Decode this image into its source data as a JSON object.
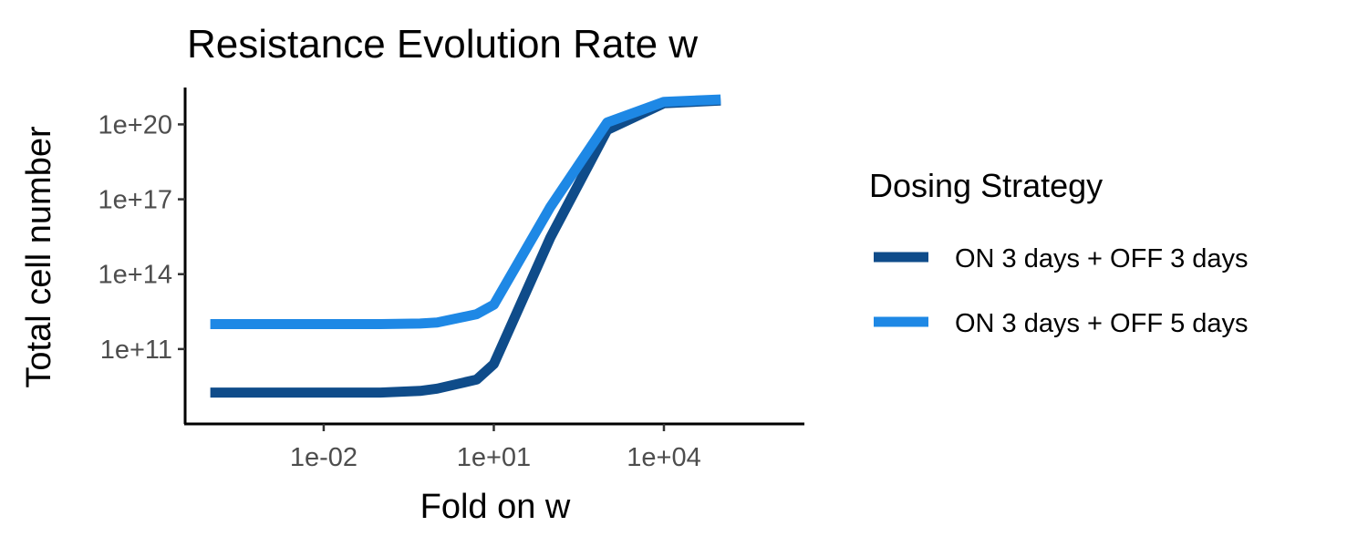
{
  "chart_data": {
    "type": "line",
    "title": "Resistance Evolution Rate w",
    "xlabel": "Fold on w",
    "ylabel": "Total cell number",
    "x_scale": "log10",
    "y_scale": "log10",
    "xlim": [
      3.6e-05,
      3000000
    ],
    "ylim": [
      100000000.0,
      3e+21
    ],
    "x_ticks": [
      {
        "value": 0.01,
        "label": "1e-02"
      },
      {
        "value": 10,
        "label": "1e+01"
      },
      {
        "value": 10000,
        "label": "1e+04"
      }
    ],
    "y_ticks": [
      {
        "value": 100000000000.0,
        "label": "1e+11"
      },
      {
        "value": 100000000000000.0,
        "label": "1e+14"
      },
      {
        "value": 1e+17,
        "label": "1e+17"
      },
      {
        "value": 1e+20,
        "label": "1e+20"
      }
    ],
    "grid": false,
    "legend": {
      "title": "Dosing Strategy",
      "position": "right"
    },
    "series": [
      {
        "name": "ON 3 days + OFF 3 days",
        "color": "#0F4C8A",
        "x": [
          0.0001,
          0.001,
          0.01,
          0.1,
          0.5,
          1,
          5,
          10,
          100,
          1000,
          10000,
          100000
        ],
        "y": [
          1800000000.0,
          1800000000.0,
          1800000000.0,
          1800000000.0,
          2100000000.0,
          2600000000.0,
          6000000000.0,
          25000000000.0,
          3000000000000000.0,
          6e+19,
          7e+20,
          9e+20
        ]
      },
      {
        "name": "ON 3 days + OFF 5 days",
        "color": "#1E88E5",
        "x": [
          0.0001,
          0.001,
          0.01,
          0.1,
          0.5,
          1,
          5,
          10,
          100,
          1000,
          10000,
          100000
        ],
        "y": [
          1000000000000.0,
          1000000000000.0,
          1000000000000.0,
          1000000000000.0,
          1050000000000.0,
          1150000000000.0,
          2500000000000.0,
          6000000000000.0,
          5e+16,
          1.2e+20,
          8e+20,
          1e+21
        ]
      }
    ]
  }
}
